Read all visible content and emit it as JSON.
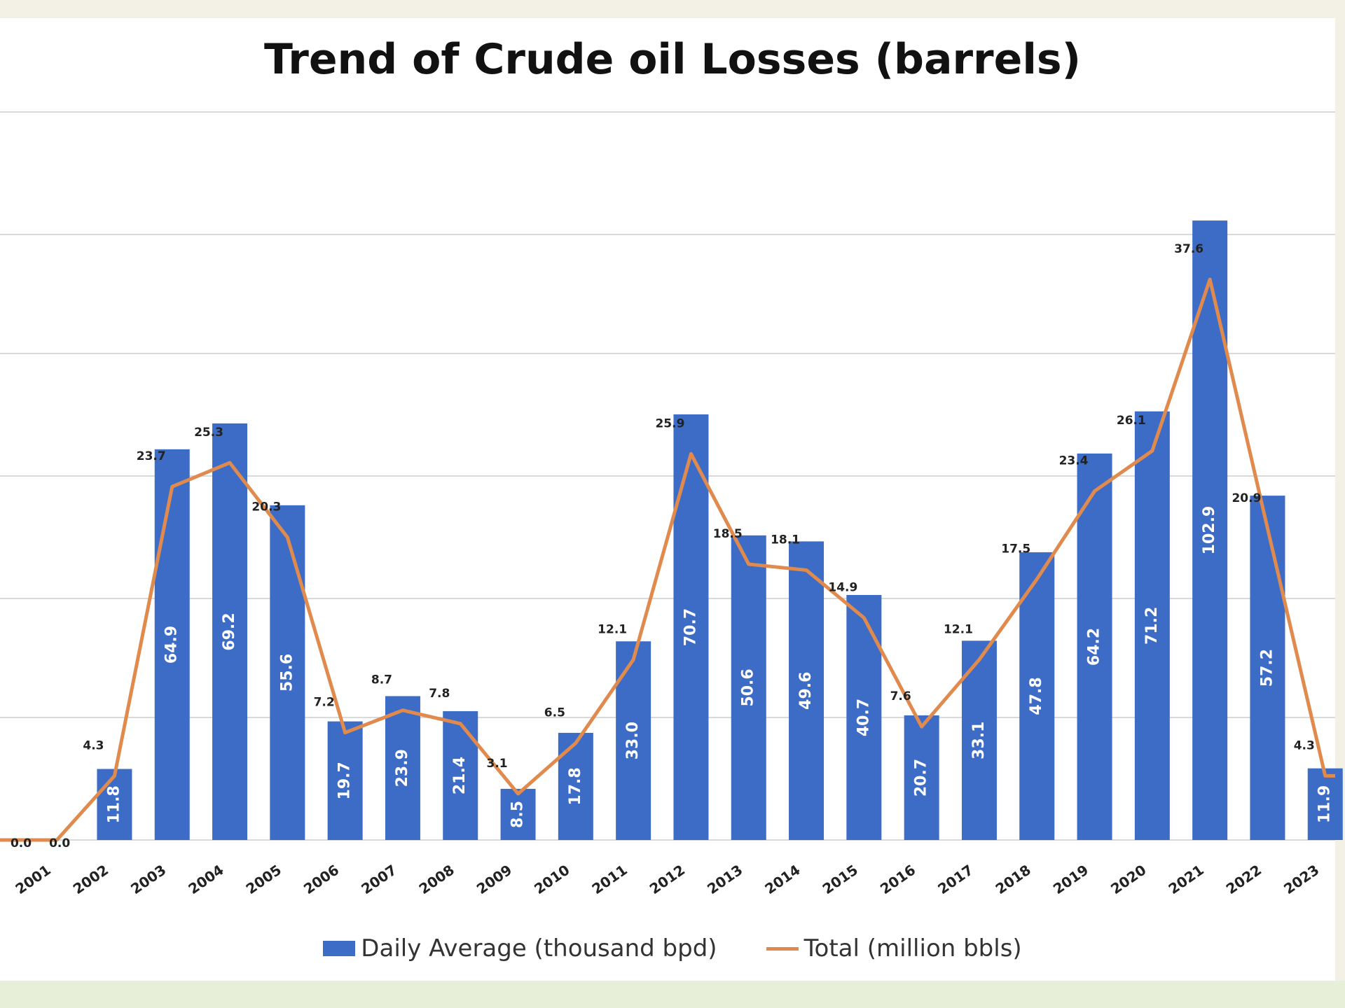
{
  "chart_data": {
    "type": "bar",
    "title": "Trend of Crude oil Losses (barrels)",
    "categories": [
      "2001",
      "2002",
      "2003",
      "2004",
      "2005",
      "2006",
      "2007",
      "2008",
      "2009",
      "2010",
      "2011",
      "2012",
      "2013",
      "2014",
      "2015",
      "2016",
      "2017",
      "2018",
      "2019",
      "2020",
      "2021",
      "2022",
      "2023"
    ],
    "series": [
      {
        "name": "Daily Average (thousand bpd)",
        "kind": "bar",
        "color": "#3d6cc6",
        "values": [
          0.0,
          11.8,
          64.9,
          69.2,
          55.6,
          19.7,
          23.9,
          21.4,
          8.5,
          17.8,
          33.0,
          70.7,
          50.6,
          49.6,
          40.7,
          20.7,
          33.1,
          47.8,
          64.2,
          71.2,
          102.9,
          57.2,
          11.9
        ],
        "labels": [
          "",
          "11.8",
          "64.9",
          "69.2",
          "55.6",
          "19.7",
          "23.9",
          "21.4",
          "8.5",
          "17.8",
          "33.0",
          "70.7",
          "50.6",
          "49.6",
          "40.7",
          "20.7",
          "33.1",
          "47.8",
          "64.2",
          "71.2",
          "102.9",
          "57.2",
          "11.9"
        ]
      },
      {
        "name": "Total (million bbls)",
        "kind": "line",
        "color": "#e08a4e",
        "values": [
          0.0,
          4.3,
          23.7,
          25.3,
          20.3,
          7.2,
          8.7,
          7.8,
          3.1,
          6.5,
          12.1,
          25.9,
          18.5,
          18.1,
          14.9,
          7.6,
          12.1,
          17.5,
          23.4,
          26.1,
          37.6,
          20.9,
          4.3
        ],
        "labels": [
          "0.0",
          "4.3",
          "23.7",
          "25.3",
          "20.3",
          "7.2",
          "8.7",
          "7.8",
          "3.1",
          "6.5",
          "12.1",
          "25.9",
          "18.5",
          "18.1",
          "14.9",
          "7.6",
          "12.1",
          "17.5",
          "23.4",
          "26.1",
          "37.6",
          "20.9",
          "4.3"
        ]
      }
    ],
    "extra_line_label": "0.0",
    "ylim_bars": [
      0,
      120
    ],
    "ylim_line": [
      0,
      44
    ],
    "grid": true,
    "legend": "bottom"
  }
}
